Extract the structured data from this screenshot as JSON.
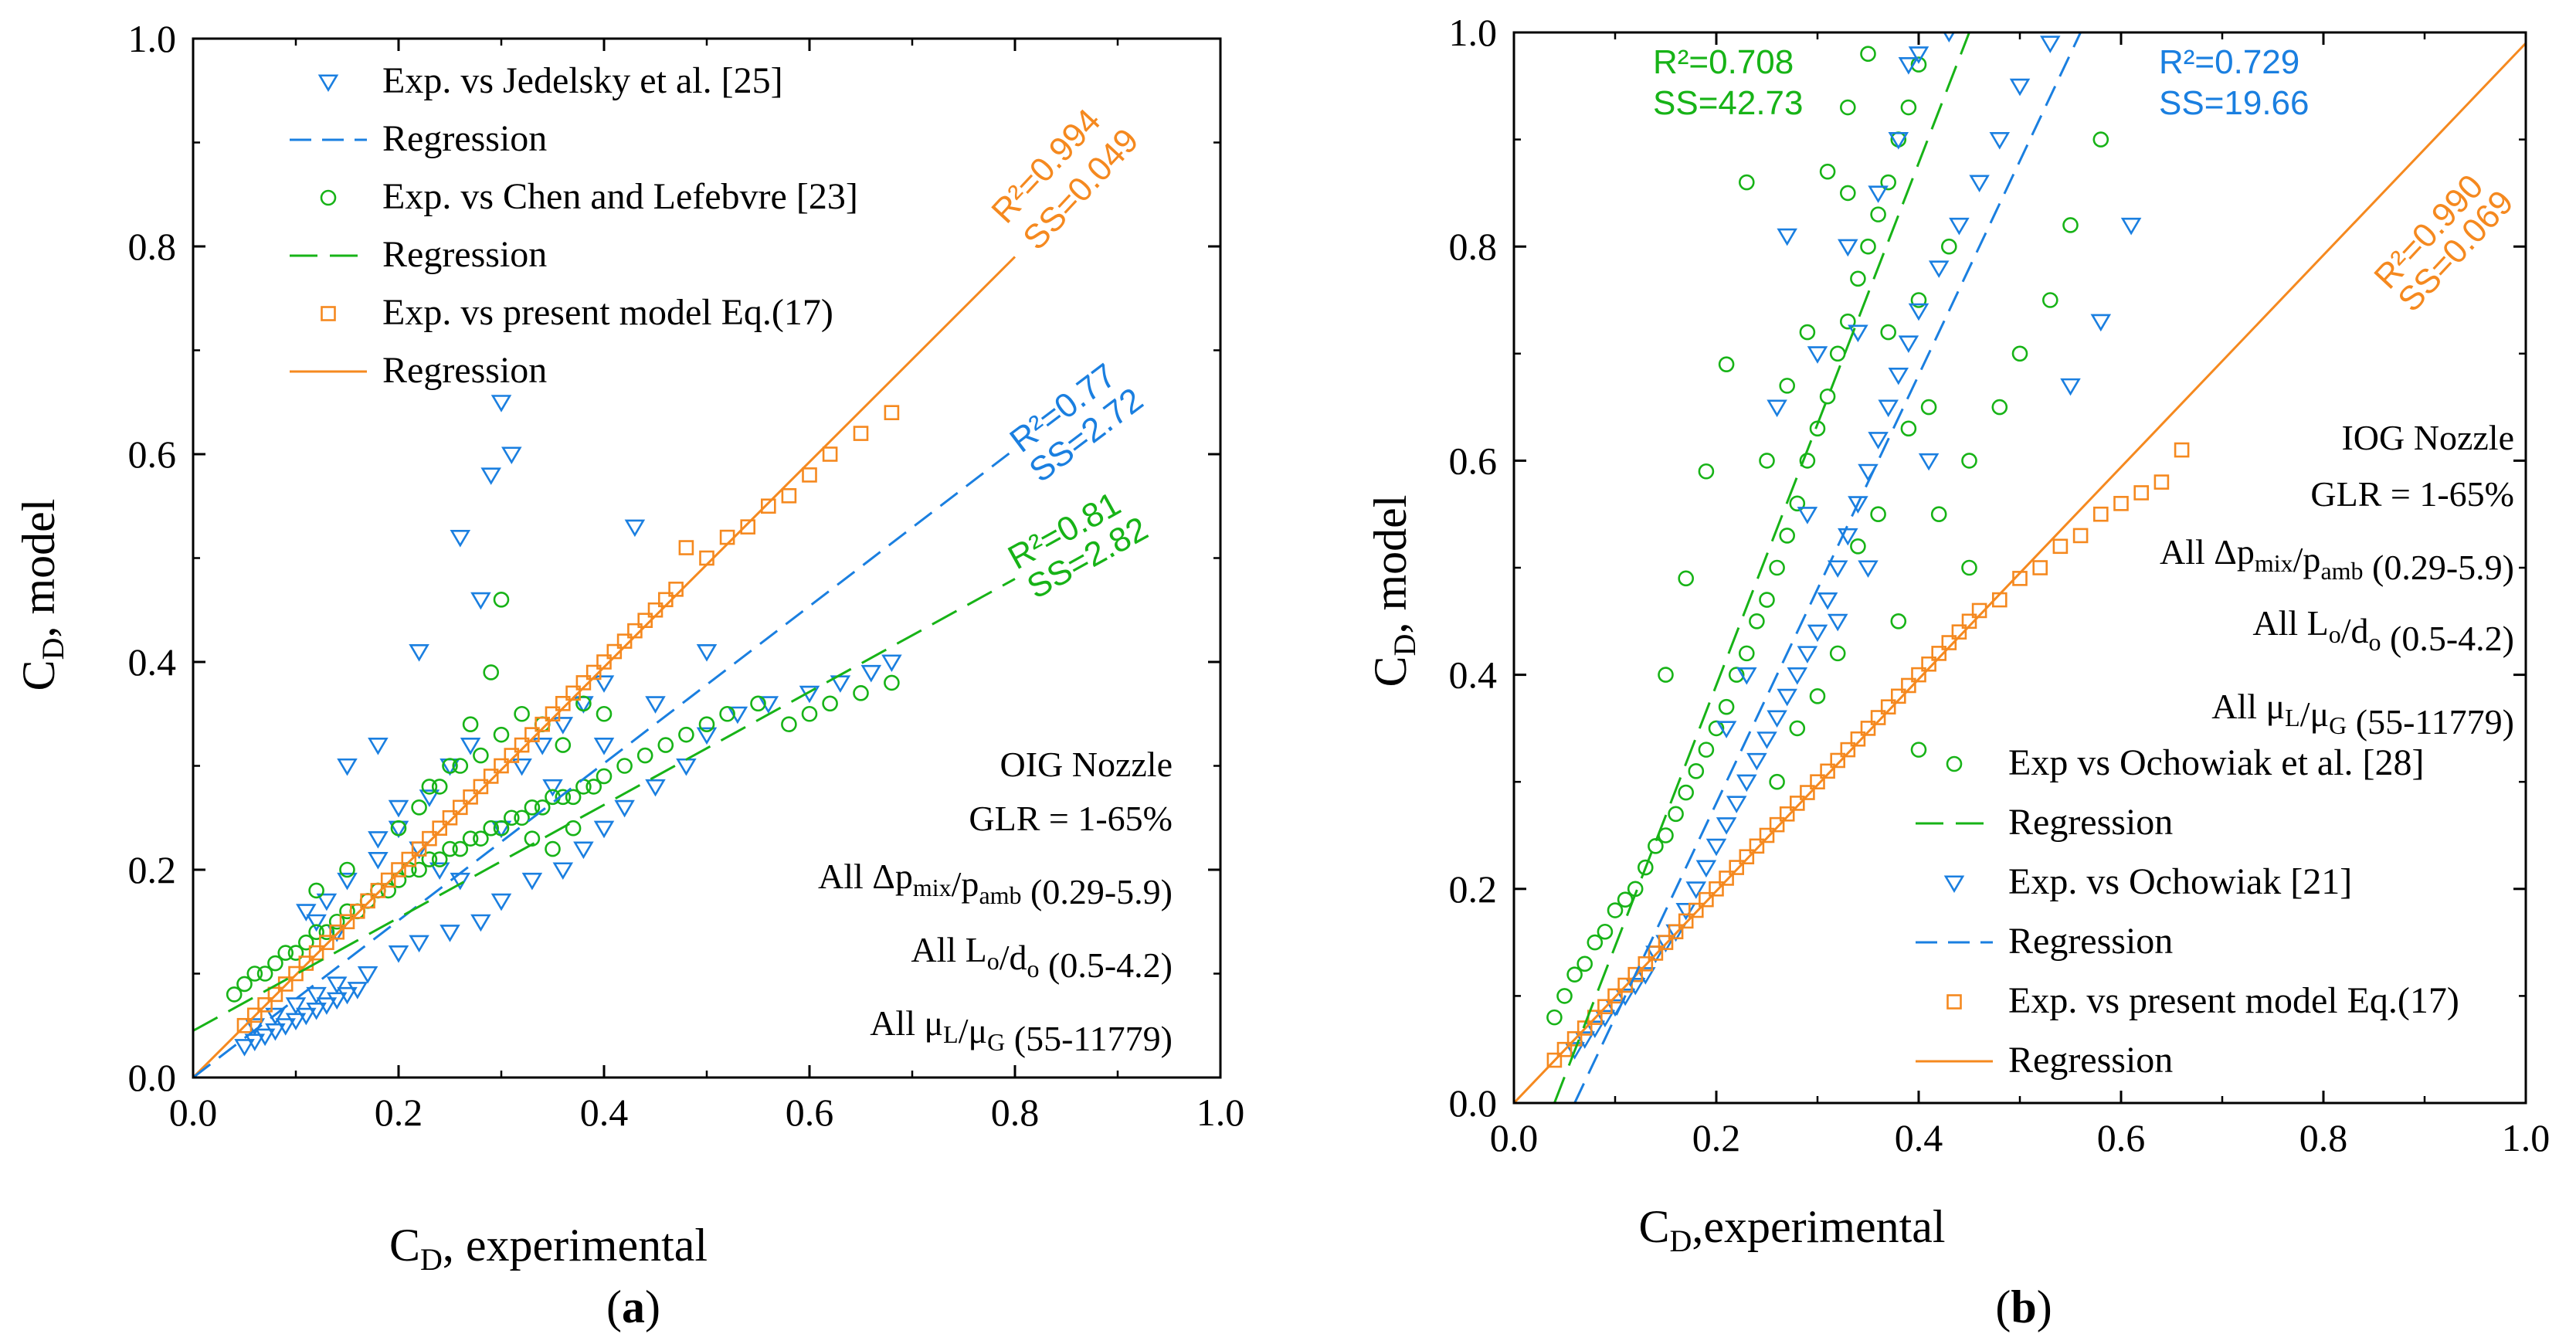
{
  "colors": {
    "blue": "#1a7fe0",
    "green": "#17b317",
    "orange": "#f5891f",
    "axis": "#000000"
  },
  "chart_data": [
    {
      "type": "scatter",
      "panel_label": "(a)",
      "xlabel": "C_D, experimental",
      "ylabel": "C_D, model",
      "xlim": [
        0,
        1.0
      ],
      "ylim": [
        0,
        1.0
      ],
      "xticks": [
        "0.0",
        "0.2",
        "0.4",
        "0.6",
        "0.8",
        "1.0"
      ],
      "yticks": [
        "0.0",
        "0.2",
        "0.4",
        "0.6",
        "0.8",
        "1.0"
      ],
      "notes": [
        "OIG Nozzle",
        "GLR = 1-65%",
        "All Δp_mix/p_amb (0.29-5.9)",
        "All L_o/d_o (0.5-4.2)",
        "All μ_L/μ_G  (55-11779)"
      ],
      "legend": [
        {
          "label": "Exp. vs Jedelsky et al. [25]",
          "color": "blue",
          "marker": "triangle-down"
        },
        {
          "label": "Regression",
          "color": "blue",
          "line": "dash"
        },
        {
          "label": "Exp. vs Chen and Lefebvre [23]",
          "color": "green",
          "marker": "circle"
        },
        {
          "label": "Regression",
          "color": "green",
          "line": "longdash"
        },
        {
          "label": "Exp. vs present model Eq.(17)",
          "color": "orange",
          "marker": "square"
        },
        {
          "label": "Regression",
          "color": "orange",
          "line": "solid"
        }
      ],
      "regressions": [
        {
          "series": "orange",
          "x": [
            0,
            0.8
          ],
          "y": [
            0.0,
            0.79
          ],
          "r2": "R²=0.994",
          "ss": "SS=0.049"
        },
        {
          "series": "blue",
          "x": [
            0,
            0.8
          ],
          "y": [
            0.0,
            0.605
          ],
          "r2": "R²=0.77",
          "ss": "SS=2.72"
        },
        {
          "series": "green",
          "x": [
            0,
            0.8
          ],
          "y": [
            0.045,
            0.48
          ],
          "r2": "R²=0.81",
          "ss": "SS=2.82"
        }
      ],
      "series": [
        {
          "name": "Exp. vs Jedelsky et al. [25]",
          "color": "blue",
          "marker": "triangle-down",
          "x": [
            0.05,
            0.06,
            0.07,
            0.08,
            0.09,
            0.1,
            0.11,
            0.12,
            0.13,
            0.14,
            0.15,
            0.16,
            0.06,
            0.08,
            0.1,
            0.12,
            0.14,
            0.17,
            0.2,
            0.22,
            0.25,
            0.28,
            0.3,
            0.33,
            0.36,
            0.38,
            0.4,
            0.42,
            0.45,
            0.48,
            0.5,
            0.53,
            0.56,
            0.6,
            0.63,
            0.66,
            0.68,
            0.11,
            0.13,
            0.15,
            0.18,
            0.2,
            0.23,
            0.25,
            0.27,
            0.29,
            0.3,
            0.31,
            0.26,
            0.28,
            0.32,
            0.34,
            0.36,
            0.38,
            0.4,
            0.43,
            0.22,
            0.18,
            0.15,
            0.24,
            0.26,
            0.3,
            0.35,
            0.4,
            0.45,
            0.5,
            0.18,
            0.2,
            0.22,
            0.12,
            0.14
          ],
          "y": [
            0.03,
            0.035,
            0.04,
            0.045,
            0.05,
            0.055,
            0.06,
            0.065,
            0.07,
            0.075,
            0.08,
            0.085,
            0.05,
            0.06,
            0.07,
            0.08,
            0.09,
            0.1,
            0.12,
            0.13,
            0.14,
            0.15,
            0.17,
            0.19,
            0.2,
            0.22,
            0.24,
            0.26,
            0.28,
            0.3,
            0.33,
            0.35,
            0.36,
            0.37,
            0.38,
            0.39,
            0.4,
            0.16,
            0.17,
            0.19,
            0.21,
            0.24,
            0.27,
            0.3,
            0.32,
            0.58,
            0.65,
            0.6,
            0.52,
            0.46,
            0.3,
            0.32,
            0.34,
            0.36,
            0.38,
            0.53,
            0.41,
            0.32,
            0.3,
            0.2,
            0.19,
            0.24,
            0.28,
            0.32,
            0.36,
            0.41,
            0.23,
            0.26,
            0.22,
            0.15,
            0.14
          ]
        },
        {
          "name": "Exp. vs Chen and Lefebvre [23]",
          "color": "green",
          "marker": "circle",
          "x": [
            0.04,
            0.05,
            0.06,
            0.07,
            0.08,
            0.09,
            0.1,
            0.11,
            0.12,
            0.13,
            0.14,
            0.15,
            0.16,
            0.17,
            0.18,
            0.19,
            0.2,
            0.21,
            0.22,
            0.23,
            0.24,
            0.25,
            0.26,
            0.27,
            0.28,
            0.29,
            0.3,
            0.31,
            0.32,
            0.33,
            0.34,
            0.35,
            0.36,
            0.37,
            0.38,
            0.39,
            0.4,
            0.42,
            0.44,
            0.46,
            0.48,
            0.5,
            0.52,
            0.55,
            0.58,
            0.6,
            0.62,
            0.65,
            0.68,
            0.2,
            0.22,
            0.24,
            0.26,
            0.28,
            0.3,
            0.32,
            0.34,
            0.36,
            0.38,
            0.4,
            0.29,
            0.3,
            0.27,
            0.25,
            0.23,
            0.33,
            0.35,
            0.37,
            0.15,
            0.12
          ],
          "y": [
            0.08,
            0.09,
            0.1,
            0.1,
            0.11,
            0.12,
            0.12,
            0.13,
            0.14,
            0.14,
            0.15,
            0.16,
            0.16,
            0.17,
            0.18,
            0.18,
            0.19,
            0.2,
            0.2,
            0.21,
            0.21,
            0.22,
            0.22,
            0.23,
            0.23,
            0.24,
            0.24,
            0.25,
            0.25,
            0.26,
            0.26,
            0.27,
            0.27,
            0.27,
            0.28,
            0.28,
            0.29,
            0.3,
            0.31,
            0.32,
            0.33,
            0.34,
            0.35,
            0.36,
            0.34,
            0.35,
            0.36,
            0.37,
            0.38,
            0.24,
            0.26,
            0.28,
            0.3,
            0.31,
            0.33,
            0.35,
            0.34,
            0.32,
            0.36,
            0.35,
            0.39,
            0.46,
            0.34,
            0.3,
            0.28,
            0.23,
            0.22,
            0.24,
            0.2,
            0.18
          ]
        },
        {
          "name": "Exp. vs present model Eq.(17)",
          "color": "orange",
          "marker": "square",
          "x": [
            0.05,
            0.06,
            0.07,
            0.08,
            0.09,
            0.1,
            0.11,
            0.12,
            0.13,
            0.14,
            0.15,
            0.16,
            0.17,
            0.18,
            0.19,
            0.2,
            0.21,
            0.22,
            0.23,
            0.24,
            0.25,
            0.26,
            0.27,
            0.28,
            0.29,
            0.3,
            0.31,
            0.32,
            0.33,
            0.34,
            0.35,
            0.36,
            0.37,
            0.38,
            0.39,
            0.4,
            0.41,
            0.42,
            0.43,
            0.44,
            0.45,
            0.46,
            0.47,
            0.48,
            0.5,
            0.52,
            0.54,
            0.56,
            0.58,
            0.6,
            0.62,
            0.65,
            0.68
          ],
          "y": [
            0.05,
            0.06,
            0.07,
            0.08,
            0.09,
            0.1,
            0.11,
            0.12,
            0.13,
            0.14,
            0.15,
            0.16,
            0.17,
            0.18,
            0.19,
            0.2,
            0.21,
            0.22,
            0.23,
            0.24,
            0.25,
            0.26,
            0.27,
            0.28,
            0.29,
            0.3,
            0.31,
            0.32,
            0.33,
            0.34,
            0.35,
            0.36,
            0.37,
            0.38,
            0.39,
            0.4,
            0.41,
            0.42,
            0.43,
            0.44,
            0.45,
            0.46,
            0.47,
            0.51,
            0.5,
            0.52,
            0.53,
            0.55,
            0.56,
            0.58,
            0.6,
            0.62,
            0.64
          ]
        }
      ]
    },
    {
      "type": "scatter",
      "panel_label": "(b)",
      "xlabel": "C_D,experimental",
      "ylabel": "C_D, model",
      "xlim": [
        0,
        1.0
      ],
      "ylim": [
        0,
        1.0
      ],
      "xticks": [
        "0.0",
        "0.2",
        "0.4",
        "0.6",
        "0.8",
        "1.0"
      ],
      "yticks": [
        "0.0",
        "0.2",
        "0.4",
        "0.6",
        "0.8",
        "1.0"
      ],
      "notes": [
        "IOG Nozzle",
        "GLR = 1-65%",
        "All Δp_mix/p_amb (0.29-5.9)",
        "All L_o/d_o (0.5-4.2)",
        "All μ_L/μ_G  (55-11779)"
      ],
      "legend": [
        {
          "label": "Exp vs Ochowiak et al. [28]",
          "color": "green",
          "marker": "circle"
        },
        {
          "label": "Regression",
          "color": "green",
          "line": "longdash"
        },
        {
          "label": "Exp. vs Ochowiak [21]",
          "color": "blue",
          "marker": "triangle-down"
        },
        {
          "label": "Regression",
          "color": "blue",
          "line": "dash"
        },
        {
          "label": "Exp. vs present model Eq.(17)",
          "color": "orange",
          "marker": "square"
        },
        {
          "label": "Regression",
          "color": "orange",
          "line": "solid"
        }
      ],
      "regressions": [
        {
          "series": "orange",
          "x": [
            0,
            1.0
          ],
          "y": [
            0.0,
            0.99
          ],
          "r2": "R²=0.990",
          "ss": "SS=0.069"
        },
        {
          "series": "green",
          "x": [
            0.04,
            0.45
          ],
          "y": [
            0.0,
            1.0
          ],
          "r2": "R²=0.708",
          "ss": "SS=42.73"
        },
        {
          "series": "blue",
          "x": [
            0.06,
            0.56
          ],
          "y": [
            0.0,
            1.0
          ],
          "r2": "R²=0.729",
          "ss": "SS=19.66"
        }
      ],
      "series": [
        {
          "name": "Exp vs Ochowiak et al. [28]",
          "color": "green",
          "marker": "circle",
          "x": [
            0.04,
            0.05,
            0.06,
            0.07,
            0.08,
            0.09,
            0.1,
            0.11,
            0.12,
            0.13,
            0.14,
            0.15,
            0.16,
            0.17,
            0.18,
            0.19,
            0.2,
            0.21,
            0.22,
            0.23,
            0.24,
            0.25,
            0.26,
            0.27,
            0.28,
            0.29,
            0.3,
            0.31,
            0.32,
            0.33,
            0.34,
            0.35,
            0.36,
            0.37,
            0.38,
            0.39,
            0.4,
            0.41,
            0.42,
            0.45,
            0.48,
            0.5,
            0.53,
            0.55,
            0.58,
            0.23,
            0.25,
            0.27,
            0.29,
            0.31,
            0.33,
            0.35,
            0.37,
            0.39,
            0.21,
            0.19,
            0.17,
            0.15,
            0.33,
            0.36,
            0.38,
            0.4,
            0.3,
            0.32,
            0.26,
            0.28,
            0.34,
            0.4,
            0.43,
            0.45
          ],
          "y": [
            0.08,
            0.1,
            0.12,
            0.13,
            0.15,
            0.16,
            0.18,
            0.19,
            0.2,
            0.22,
            0.24,
            0.25,
            0.27,
            0.29,
            0.31,
            0.33,
            0.35,
            0.37,
            0.4,
            0.42,
            0.45,
            0.47,
            0.5,
            0.53,
            0.56,
            0.6,
            0.63,
            0.66,
            0.7,
            0.73,
            0.77,
            0.8,
            0.83,
            0.86,
            0.9,
            0.93,
            0.97,
            0.65,
            0.55,
            0.6,
            0.65,
            0.7,
            0.75,
            0.82,
            0.9,
            0.86,
            0.6,
            0.67,
            0.72,
            0.87,
            0.93,
            0.98,
            0.72,
            0.63,
            0.69,
            0.59,
            0.49,
            0.4,
            0.85,
            0.55,
            0.45,
            0.33,
            0.38,
            0.42,
            0.3,
            0.35,
            0.52,
            0.75,
            0.8,
            0.5
          ]
        },
        {
          "name": "Exp. vs Ochowiak [21]",
          "color": "blue",
          "marker": "triangle-down",
          "x": [
            0.06,
            0.07,
            0.08,
            0.09,
            0.1,
            0.11,
            0.12,
            0.13,
            0.14,
            0.15,
            0.16,
            0.17,
            0.18,
            0.19,
            0.2,
            0.21,
            0.22,
            0.23,
            0.24,
            0.25,
            0.26,
            0.27,
            0.28,
            0.29,
            0.3,
            0.31,
            0.32,
            0.33,
            0.34,
            0.35,
            0.36,
            0.37,
            0.38,
            0.39,
            0.4,
            0.42,
            0.44,
            0.46,
            0.48,
            0.5,
            0.53,
            0.55,
            0.58,
            0.61,
            0.27,
            0.3,
            0.33,
            0.36,
            0.39,
            0.41,
            0.35,
            0.32,
            0.29,
            0.26,
            0.23,
            0.21,
            0.38,
            0.4,
            0.43,
            0.34
          ],
          "y": [
            0.05,
            0.06,
            0.07,
            0.08,
            0.09,
            0.1,
            0.11,
            0.12,
            0.14,
            0.15,
            0.16,
            0.18,
            0.2,
            0.22,
            0.24,
            0.26,
            0.28,
            0.3,
            0.32,
            0.34,
            0.36,
            0.38,
            0.4,
            0.42,
            0.44,
            0.47,
            0.5,
            0.53,
            0.56,
            0.59,
            0.62,
            0.65,
            0.68,
            0.71,
            0.74,
            0.78,
            0.82,
            0.86,
            0.9,
            0.95,
            0.99,
            0.67,
            0.73,
            0.82,
            0.81,
            0.7,
            0.8,
            0.85,
            0.97,
            0.6,
            0.5,
            0.45,
            0.55,
            0.65,
            0.4,
            0.35,
            0.9,
            0.98,
            1.0,
            0.72
          ]
        },
        {
          "name": "Exp. vs present model Eq.(17)",
          "color": "orange",
          "marker": "square",
          "x": [
            0.04,
            0.05,
            0.06,
            0.07,
            0.08,
            0.09,
            0.1,
            0.11,
            0.12,
            0.13,
            0.14,
            0.15,
            0.16,
            0.17,
            0.18,
            0.19,
            0.2,
            0.21,
            0.22,
            0.23,
            0.24,
            0.25,
            0.26,
            0.27,
            0.28,
            0.29,
            0.3,
            0.31,
            0.32,
            0.33,
            0.34,
            0.35,
            0.36,
            0.37,
            0.38,
            0.39,
            0.4,
            0.41,
            0.42,
            0.43,
            0.44,
            0.45,
            0.46,
            0.48,
            0.5,
            0.52,
            0.54,
            0.56,
            0.58,
            0.6,
            0.62,
            0.64,
            0.66
          ],
          "y": [
            0.04,
            0.05,
            0.06,
            0.07,
            0.08,
            0.09,
            0.1,
            0.11,
            0.12,
            0.13,
            0.14,
            0.15,
            0.16,
            0.17,
            0.18,
            0.19,
            0.2,
            0.21,
            0.22,
            0.23,
            0.24,
            0.25,
            0.26,
            0.27,
            0.28,
            0.29,
            0.3,
            0.31,
            0.32,
            0.33,
            0.34,
            0.35,
            0.36,
            0.37,
            0.38,
            0.39,
            0.4,
            0.41,
            0.42,
            0.43,
            0.44,
            0.45,
            0.46,
            0.47,
            0.49,
            0.5,
            0.52,
            0.53,
            0.55,
            0.56,
            0.57,
            0.58,
            0.61
          ]
        }
      ]
    }
  ]
}
